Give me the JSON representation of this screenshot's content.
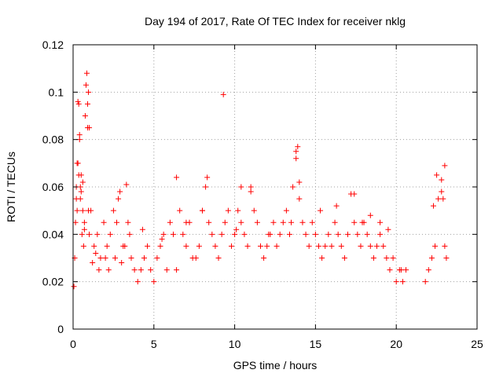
{
  "chart_data": {
    "type": "scatter",
    "title": "Day 194 of 2017, Rate Of TEC Index for receiver nklg",
    "xlabel": "GPS time / hours",
    "ylabel": "ROTI / TECUs",
    "xlim": [
      0,
      25
    ],
    "ylim": [
      0,
      0.12
    ],
    "x_ticks": [
      "0",
      "5",
      "10",
      "15",
      "20",
      "25"
    ],
    "y_ticks": [
      "0",
      "0.02",
      "0.04",
      "0.06",
      "0.08",
      "0.1",
      "0.12"
    ],
    "grid": true,
    "legend": "none",
    "marker": "plus",
    "color": "#ff0000",
    "series": [
      {
        "x": [
          0.05,
          0.1,
          0.15,
          0.2,
          0.25,
          0.3,
          0.35,
          0.4,
          0.45,
          0.5,
          0.55,
          0.6,
          0.65,
          0.7,
          0.75,
          0.8,
          0.85,
          0.9,
          0.95,
          1.0,
          0.3,
          0.4,
          0.5,
          0.9,
          1.0,
          0.95,
          0.35,
          0.45,
          0.6,
          0.7,
          0.2,
          0.25,
          1.1,
          1.3,
          1.5,
          1.7,
          1.9,
          2.1,
          2.3,
          2.5,
          2.7,
          2.9,
          3.1,
          3.3,
          3.5,
          2.8,
          3.4,
          1.2,
          1.4,
          1.6,
          2.0,
          2.2,
          2.6,
          3.0,
          3.2,
          3.6,
          3.8,
          4.0,
          4.2,
          4.4,
          4.6,
          4.8,
          5.0,
          5.2,
          5.4,
          5.6,
          5.8,
          6.0,
          6.2,
          6.4,
          6.6,
          6.8,
          7.0,
          7.2,
          7.4,
          7.6,
          7.8,
          8.0,
          8.2,
          8.4,
          8.6,
          8.8,
          9.0,
          9.2,
          9.4,
          9.6,
          9.8,
          10.0,
          10.2,
          10.4,
          10.6,
          10.8,
          11.0,
          11.2,
          11.4,
          11.6,
          11.8,
          12.0,
          12.2,
          12.4,
          12.6,
          12.8,
          13.0,
          13.2,
          13.4,
          13.6,
          13.8,
          14.0,
          14.2,
          14.4,
          14.6,
          14.8,
          15.0,
          15.2,
          15.4,
          15.6,
          15.8,
          16.0,
          16.2,
          16.4,
          16.6,
          16.8,
          17.0,
          17.2,
          17.4,
          17.6,
          17.8,
          18.0,
          18.2,
          18.4,
          18.6,
          18.8,
          19.0,
          19.2,
          19.4,
          19.6,
          19.8,
          20.0,
          20.2,
          20.4,
          20.6,
          21.8,
          22.0,
          22.2,
          22.4,
          22.6,
          22.8,
          23.0,
          23.1,
          6.4,
          8.3,
          9.3,
          10.4,
          11.0,
          13.8,
          13.9,
          14.0,
          16.3,
          17.4,
          18.4,
          19.0,
          22.3,
          22.5,
          22.8,
          23.0,
          4.3,
          5.5,
          7.0,
          8.0,
          10.1,
          12.1,
          13.5,
          15.3,
          17.9,
          19.5,
          20.3,
          22.9
        ],
        "y": [
          0.018,
          0.03,
          0.045,
          0.06,
          0.05,
          0.07,
          0.095,
          0.082,
          0.06,
          0.065,
          0.04,
          0.05,
          0.035,
          0.045,
          0.09,
          0.103,
          0.108,
          0.085,
          0.05,
          0.04,
          0.096,
          0.08,
          0.058,
          0.095,
          0.085,
          0.1,
          0.065,
          0.055,
          0.062,
          0.042,
          0.055,
          0.07,
          0.05,
          0.035,
          0.04,
          0.03,
          0.045,
          0.035,
          0.04,
          0.05,
          0.045,
          0.058,
          0.035,
          0.061,
          0.04,
          0.055,
          0.045,
          0.028,
          0.032,
          0.025,
          0.03,
          0.025,
          0.03,
          0.028,
          0.035,
          0.03,
          0.025,
          0.02,
          0.025,
          0.03,
          0.035,
          0.025,
          0.02,
          0.03,
          0.035,
          0.04,
          0.025,
          0.045,
          0.04,
          0.064,
          0.05,
          0.04,
          0.035,
          0.045,
          0.03,
          0.03,
          0.035,
          0.05,
          0.06,
          0.045,
          0.04,
          0.035,
          0.03,
          0.04,
          0.045,
          0.05,
          0.035,
          0.04,
          0.05,
          0.045,
          0.04,
          0.035,
          0.06,
          0.05,
          0.045,
          0.035,
          0.03,
          0.035,
          0.04,
          0.045,
          0.035,
          0.04,
          0.045,
          0.05,
          0.04,
          0.06,
          0.075,
          0.055,
          0.045,
          0.04,
          0.035,
          0.045,
          0.04,
          0.035,
          0.03,
          0.035,
          0.04,
          0.035,
          0.045,
          0.04,
          0.035,
          0.03,
          0.04,
          0.057,
          0.045,
          0.04,
          0.035,
          0.045,
          0.04,
          0.035,
          0.03,
          0.035,
          0.04,
          0.035,
          0.03,
          0.025,
          0.03,
          0.02,
          0.025,
          0.02,
          0.025,
          0.02,
          0.025,
          0.03,
          0.035,
          0.055,
          0.063,
          0.035,
          0.03,
          0.025,
          0.064,
          0.099,
          0.06,
          0.058,
          0.072,
          0.077,
          0.062,
          0.052,
          0.057,
          0.048,
          0.045,
          0.052,
          0.065,
          0.058,
          0.069,
          0.042,
          0.038,
          0.045,
          0.05,
          0.042,
          0.04,
          0.045,
          0.05,
          0.045,
          0.042,
          0.025,
          0.055
        ]
      }
    ]
  }
}
